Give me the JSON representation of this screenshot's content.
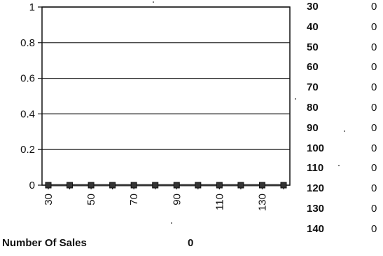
{
  "chart_data": {
    "type": "line",
    "x": [
      30,
      40,
      50,
      60,
      70,
      80,
      90,
      100,
      110,
      120,
      130,
      140
    ],
    "series": [
      {
        "values": [
          0,
          0,
          0,
          0,
          0,
          0,
          0,
          0,
          0,
          0,
          0,
          0
        ],
        "color": "#333333",
        "marker": "square"
      }
    ],
    "xlim": [
      30,
      140
    ],
    "ylim": [
      0,
      1
    ],
    "y_ticks": [
      "0",
      "0.2",
      "0.4",
      "0.6",
      "0.8",
      "1"
    ],
    "x_ticks": [
      "30",
      "50",
      "70",
      "90",
      "110",
      "130"
    ],
    "grid": true,
    "legend": "none",
    "title": "",
    "xlabel": "",
    "ylabel": ""
  },
  "side_table": {
    "rows": [
      {
        "key": "30",
        "value": "0"
      },
      {
        "key": "40",
        "value": "0"
      },
      {
        "key": "50",
        "value": "0"
      },
      {
        "key": "60",
        "value": "0"
      },
      {
        "key": "70",
        "value": "0"
      },
      {
        "key": "80",
        "value": "0"
      },
      {
        "key": "90",
        "value": "0"
      },
      {
        "key": "100",
        "value": "0"
      },
      {
        "key": "110",
        "value": "0"
      },
      {
        "key": "120",
        "value": "0"
      },
      {
        "key": "130",
        "value": "0"
      },
      {
        "key": "140",
        "value": "0"
      }
    ]
  },
  "footer": {
    "label": "Number Of Sales",
    "value": "0"
  }
}
